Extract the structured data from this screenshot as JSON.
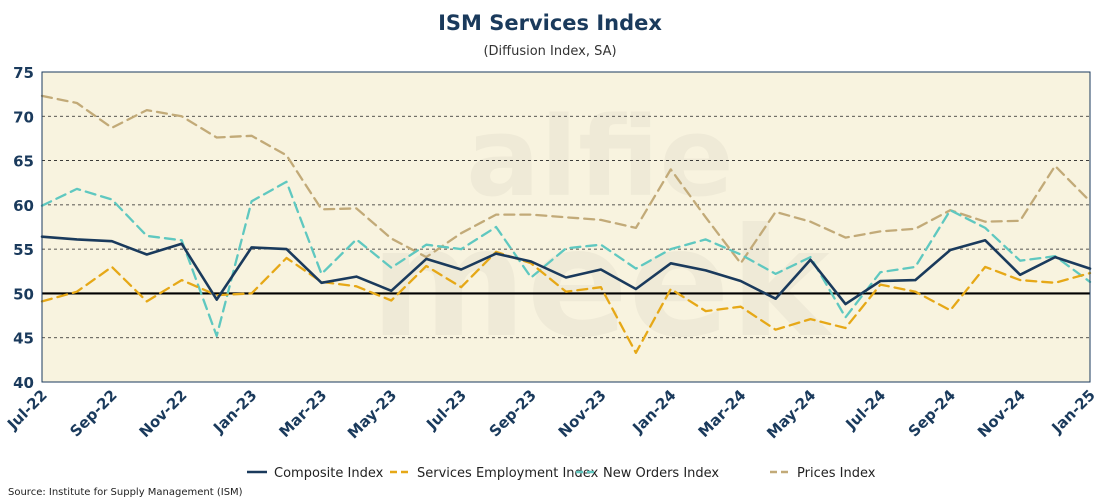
{
  "header": {
    "title": "ISM Services Index",
    "subtitle": "(Diffusion Index, SA)"
  },
  "watermark": {
    "line1": "alfie",
    "line2": "meek"
  },
  "source": "Source: Institute for Supply Management (ISM)",
  "colors": {
    "plot_bg": "#f8f3df",
    "axis": "#1a3a5c",
    "reference_line": "#000000"
  },
  "chart_data": {
    "type": "line",
    "title": "ISM Services Index",
    "subtitle": "(Diffusion Index, SA)",
    "x": [
      "Jul-22",
      "Aug-22",
      "Sep-22",
      "Oct-22",
      "Nov-22",
      "Dec-22",
      "Jan-23",
      "Feb-23",
      "Mar-23",
      "Apr-23",
      "May-23",
      "Jun-23",
      "Jul-23",
      "Aug-23",
      "Sep-23",
      "Oct-23",
      "Nov-23",
      "Dec-23",
      "Jan-24",
      "Feb-24",
      "Mar-24",
      "Apr-24",
      "May-24",
      "Jun-24",
      "Jul-24",
      "Aug-24",
      "Sep-24",
      "Oct-24",
      "Nov-24",
      "Dec-24",
      "Jan-25"
    ],
    "xticks": [
      "Jul-22",
      "Sep-22",
      "Nov-22",
      "Jan-23",
      "Mar-23",
      "May-23",
      "Jul-23",
      "Sep-23",
      "Nov-23",
      "Jan-24",
      "Mar-24",
      "May-24",
      "Jul-24",
      "Sep-24",
      "Nov-24",
      "Jan-25"
    ],
    "ylim": [
      40,
      75
    ],
    "yticks": [
      40,
      45,
      50,
      55,
      60,
      65,
      70,
      75
    ],
    "grid": "horizontal-dashed",
    "reference_line": 50,
    "legend_position": "bottom",
    "series": [
      {
        "name": "Composite Index",
        "color": "#1a3a5c",
        "dash": "solid",
        "values": [
          56.4,
          56.1,
          55.9,
          54.4,
          55.6,
          49.3,
          55.2,
          55.0,
          51.2,
          51.9,
          50.3,
          53.9,
          52.7,
          54.5,
          53.6,
          51.8,
          52.7,
          50.5,
          53.4,
          52.6,
          51.4,
          49.4,
          53.8,
          48.8,
          51.4,
          51.5,
          54.9,
          56.0,
          52.1,
          54.1,
          52.8
        ]
      },
      {
        "name": "Services Employment Index",
        "color": "#e6a817",
        "dash": "dashed",
        "values": [
          49.1,
          50.2,
          53.0,
          49.1,
          51.5,
          49.8,
          50.0,
          54.0,
          51.3,
          50.8,
          49.2,
          53.1,
          50.7,
          54.7,
          53.4,
          50.2,
          50.7,
          43.3,
          50.5,
          48.0,
          48.5,
          45.9,
          47.1,
          46.1,
          51.0,
          50.2,
          48.1,
          53.0,
          51.5,
          51.2,
          52.3
        ]
      },
      {
        "name": "New Orders Index",
        "color": "#5fc8c0",
        "dash": "dashed",
        "values": [
          59.9,
          61.8,
          60.6,
          56.5,
          56.0,
          45.2,
          60.4,
          62.6,
          52.2,
          56.1,
          52.9,
          55.5,
          55.0,
          57.5,
          51.8,
          55.1,
          55.5,
          52.8,
          55.0,
          56.1,
          54.4,
          52.2,
          54.1,
          47.3,
          52.4,
          53.0,
          59.4,
          57.4,
          53.7,
          54.2,
          51.3
        ]
      },
      {
        "name": "Prices Index",
        "color": "#c2aa78",
        "dash": "dashed",
        "values": [
          72.3,
          71.5,
          68.7,
          70.7,
          70.0,
          67.6,
          67.8,
          65.6,
          59.5,
          59.6,
          56.2,
          54.1,
          56.8,
          58.9,
          58.9,
          58.6,
          58.3,
          57.4,
          64.0,
          58.6,
          53.4,
          59.2,
          58.1,
          56.3,
          57.0,
          57.3,
          59.4,
          58.1,
          58.2,
          64.4,
          60.4
        ]
      }
    ]
  }
}
